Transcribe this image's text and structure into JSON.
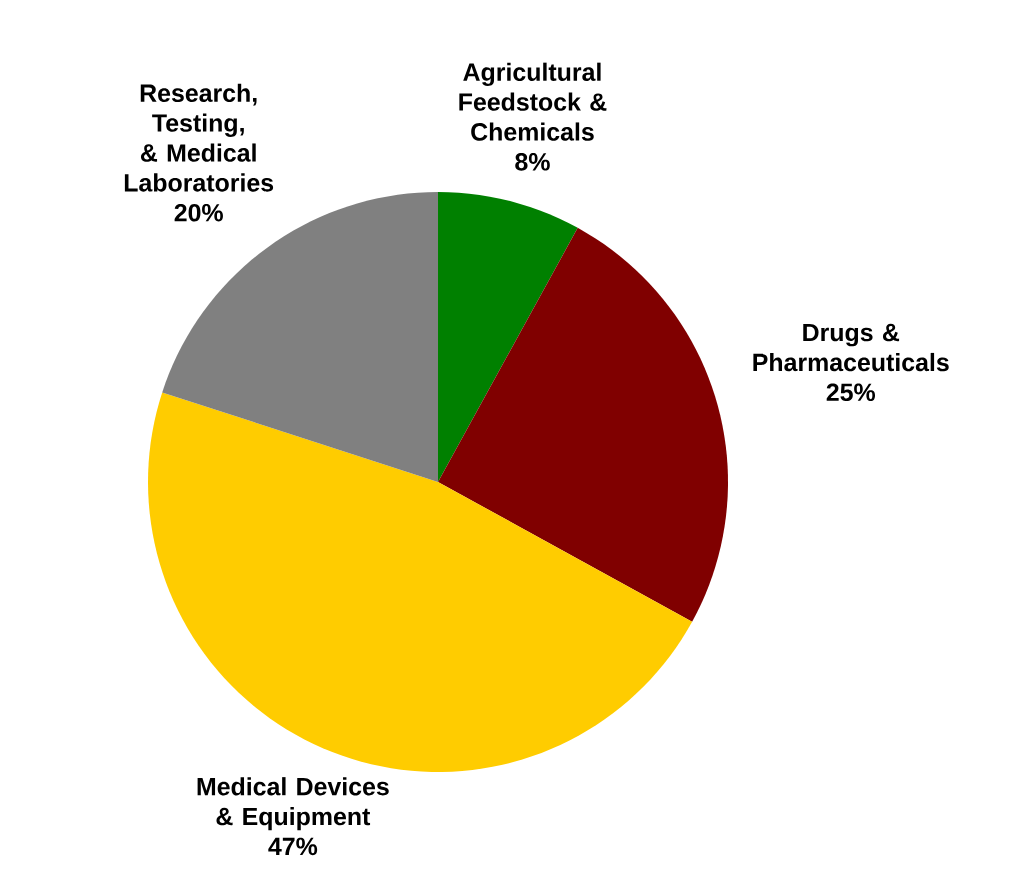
{
  "chart_data": {
    "type": "pie",
    "categories": [
      "Agricultural Feedstock & Chemicals",
      "Drugs & Pharmaceuticals",
      "Medical Devices & Equipment",
      "Research, Testing, & Medical Laboratories"
    ],
    "values": [
      8,
      25,
      47,
      20
    ],
    "value_labels": [
      "8%",
      "25%",
      "47%",
      "20%"
    ],
    "colors": [
      "#008000",
      "#800000",
      "#ffcc00",
      "#808080"
    ]
  }
}
